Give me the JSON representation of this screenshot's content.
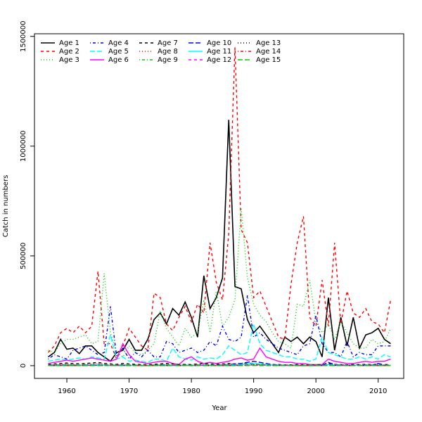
{
  "chart_data": {
    "type": "line",
    "xlabel": "Year",
    "ylabel": "Catch in numbers",
    "x": [
      1957,
      1958,
      1959,
      1960,
      1961,
      1962,
      1963,
      1964,
      1965,
      1966,
      1967,
      1968,
      1969,
      1970,
      1971,
      1972,
      1973,
      1974,
      1975,
      1976,
      1977,
      1978,
      1979,
      1980,
      1981,
      1982,
      1983,
      1984,
      1985,
      1986,
      1987,
      1988,
      1989,
      1990,
      1991,
      1992,
      1993,
      1994,
      1995,
      1996,
      1997,
      1998,
      1999,
      2000,
      2001,
      2002,
      2003,
      2004,
      2005,
      2006,
      2007,
      2008,
      2009,
      2010,
      2011,
      2012
    ],
    "xlim": [
      1954.8,
      2014.1
    ],
    "xticks": [
      1960,
      1970,
      1980,
      1990,
      2000,
      2010
    ],
    "ylim": [
      -58000,
      1512000
    ],
    "yticks": [
      0,
      500000,
      1000000,
      1500000
    ],
    "legend": "top-left",
    "series": [
      {
        "name": "Age 1",
        "color": "#000000",
        "linestyle": "solid",
        "values": [
          40000,
          60000,
          120000,
          75000,
          80000,
          55000,
          90000,
          90000,
          60000,
          40000,
          20000,
          60000,
          70000,
          120000,
          70000,
          70000,
          120000,
          210000,
          240000,
          190000,
          260000,
          230000,
          290000,
          220000,
          130000,
          410000,
          260000,
          310000,
          400000,
          1120000,
          360000,
          350000,
          210000,
          150000,
          180000,
          140000,
          100000,
          60000,
          130000,
          110000,
          130000,
          100000,
          130000,
          110000,
          40000,
          310000,
          70000,
          220000,
          90000,
          220000,
          80000,
          140000,
          150000,
          170000,
          120000,
          100000
        ]
      },
      {
        "name": "Age 2",
        "color": "#ff0000",
        "linestyle": "dashed",
        "values": [
          60000,
          90000,
          150000,
          170000,
          150000,
          180000,
          150000,
          180000,
          430000,
          100000,
          100000,
          30000,
          90000,
          170000,
          130000,
          90000,
          70000,
          330000,
          310000,
          190000,
          160000,
          220000,
          270000,
          200000,
          280000,
          240000,
          560000,
          380000,
          300000,
          600000,
          1450000,
          620000,
          560000,
          310000,
          340000,
          270000,
          200000,
          130000,
          120000,
          370000,
          560000,
          680000,
          220000,
          180000,
          390000,
          180000,
          560000,
          190000,
          340000,
          240000,
          220000,
          260000,
          200000,
          190000,
          150000,
          300000
        ]
      },
      {
        "name": "Age 3",
        "color": "#00cd00",
        "linestyle": "dotted",
        "values": [
          70000,
          60000,
          100000,
          120000,
          120000,
          130000,
          140000,
          100000,
          110000,
          420000,
          150000,
          60000,
          40000,
          90000,
          60000,
          50000,
          70000,
          100000,
          250000,
          170000,
          130000,
          90000,
          170000,
          130000,
          150000,
          300000,
          150000,
          340000,
          180000,
          220000,
          300000,
          720000,
          400000,
          280000,
          230000,
          200000,
          150000,
          110000,
          100000,
          80000,
          280000,
          270000,
          390000,
          200000,
          150000,
          190000,
          120000,
          200000,
          150000,
          100000,
          80000,
          80000,
          120000,
          100000,
          110000,
          170000
        ]
      },
      {
        "name": "Age 4",
        "color": "#0000ff",
        "linestyle": "dotdash",
        "values": [
          30000,
          50000,
          40000,
          30000,
          70000,
          80000,
          90000,
          70000,
          50000,
          60000,
          270000,
          40000,
          80000,
          30000,
          60000,
          40000,
          70000,
          40000,
          40000,
          110000,
          100000,
          60000,
          70000,
          80000,
          60000,
          70000,
          110000,
          90000,
          180000,
          120000,
          110000,
          130000,
          320000,
          130000,
          150000,
          120000,
          100000,
          80000,
          70000,
          60000,
          50000,
          90000,
          100000,
          230000,
          100000,
          60000,
          60000,
          40000,
          110000,
          40000,
          60000,
          50000,
          50000,
          90000,
          90000,
          90000
        ]
      },
      {
        "name": "Age 5",
        "color": "#00ffff",
        "linestyle": "longdash",
        "values": [
          20000,
          25000,
          30000,
          25000,
          30000,
          35000,
          30000,
          40000,
          35000,
          30000,
          140000,
          30000,
          40000,
          20000,
          25000,
          20000,
          15000,
          30000,
          30000,
          20000,
          80000,
          40000,
          30000,
          25000,
          40000,
          30000,
          35000,
          30000,
          50000,
          90000,
          70000,
          50000,
          60000,
          190000,
          100000,
          70000,
          60000,
          50000,
          40000,
          40000,
          30000,
          30000,
          20000,
          30000,
          130000,
          60000,
          50000,
          40000,
          30000,
          30000,
          40000,
          30000,
          40000,
          30000,
          50000,
          40000
        ]
      },
      {
        "name": "Age 6",
        "color": "#ff00ff",
        "linestyle": "solid",
        "values": [
          10000,
          15000,
          20000,
          25000,
          20000,
          25000,
          30000,
          35000,
          30000,
          25000,
          20000,
          30000,
          100000,
          50000,
          20000,
          15000,
          10000,
          15000,
          20000,
          20000,
          10000,
          5000,
          30000,
          40000,
          20000,
          10000,
          15000,
          10000,
          15000,
          20000,
          30000,
          35000,
          25000,
          30000,
          80000,
          40000,
          30000,
          20000,
          15000,
          15000,
          10000,
          10000,
          5000,
          5000,
          5000,
          30000,
          20000,
          15000,
          10000,
          10000,
          15000,
          20000,
          15000,
          20000,
          20000,
          30000
        ]
      },
      {
        "name": "Age 7",
        "color": "#000000",
        "linestyle": "dashed",
        "values": [
          5000,
          8000,
          10000,
          12000,
          10000,
          8000,
          10000,
          12000,
          15000,
          10000,
          8000,
          6000,
          10000,
          8000,
          6000,
          5000,
          5000,
          6000,
          8000,
          10000,
          8000,
          5000,
          6000,
          5000,
          8000,
          10000,
          8000,
          6000,
          8000,
          10000,
          8000,
          10000,
          12000,
          10000,
          8000,
          6000,
          5000,
          5000,
          4000,
          4000,
          5000,
          4000,
          3000,
          4000,
          5000,
          10000,
          6000,
          5000,
          4000,
          5000,
          5000,
          6000,
          5000,
          6000,
          5000,
          5000
        ]
      },
      {
        "name": "Age 8",
        "color": "#ff0000",
        "linestyle": "dotted",
        "values": [
          3000,
          4000,
          6000,
          8000,
          6000,
          5000,
          6000,
          8000,
          10000,
          8000,
          5000,
          4000,
          6000,
          5000,
          4000,
          3000,
          3000,
          4000,
          5000,
          6000,
          5000,
          3000,
          4000,
          3000,
          5000,
          6000,
          5000,
          4000,
          5000,
          6000,
          5000,
          6000,
          8000,
          6000,
          5000,
          4000,
          3000,
          3000,
          3000,
          3000,
          3000,
          3000,
          2000,
          3000,
          3000,
          6000,
          4000,
          3000,
          3000,
          3000,
          3000,
          4000,
          3000,
          4000,
          3000,
          3000
        ]
      },
      {
        "name": "Age 9",
        "color": "#00cd00",
        "linestyle": "dotdash",
        "values": [
          2000,
          3000,
          4000,
          5000,
          4000,
          3000,
          4000,
          5000,
          6000,
          5000,
          3000,
          2000,
          4000,
          3000,
          2000,
          2000,
          2000,
          3000,
          4000,
          4000,
          3000,
          2000,
          3000,
          2000,
          3000,
          4000,
          3000,
          2000,
          3000,
          4000,
          3000,
          4000,
          5000,
          4000,
          3000,
          2000,
          2000,
          2000,
          2000,
          2000,
          2000,
          2000,
          1000,
          2000,
          2000,
          4000,
          3000,
          2000,
          2000,
          2000,
          2000,
          3000,
          2000,
          3000,
          2000,
          2000
        ]
      },
      {
        "name": "Age 10",
        "color": "#0000ff",
        "linestyle": "longdash",
        "values": [
          1000,
          2000,
          3000,
          4000,
          3000,
          2000,
          3000,
          4000,
          5000,
          4000,
          2000,
          2000,
          3000,
          2000,
          2000,
          1000,
          1000,
          2000,
          3000,
          3000,
          2000,
          1000,
          2000,
          1000,
          2000,
          3000,
          2000,
          2000,
          3000,
          5000,
          8000,
          10000,
          15000,
          20000,
          15000,
          10000,
          5000,
          3000,
          2000,
          2000,
          2000,
          1000,
          1000,
          1000,
          2000,
          15000,
          5000,
          3000,
          2000,
          2000,
          2000,
          3000,
          2000,
          10000,
          3000,
          2000
        ]
      },
      {
        "name": "Age 11",
        "color": "#00ffff",
        "linestyle": "solid",
        "values": [
          1000,
          1000,
          2000,
          3000,
          2000,
          2000,
          2000,
          3000,
          4000,
          3000,
          2000,
          1000,
          2000,
          2000,
          1000,
          1000,
          1000,
          1000,
          2000,
          2000,
          2000,
          1000,
          1000,
          1000,
          1000,
          2000,
          2000,
          1000,
          2000,
          3000,
          4000,
          6000,
          8000,
          10000,
          8000,
          5000,
          3000,
          2000,
          2000,
          1000,
          1000,
          1000,
          1000,
          1000,
          1000,
          5000,
          3000,
          2000,
          1000,
          1000,
          1000,
          2000,
          1000,
          3000,
          2000,
          1000
        ]
      },
      {
        "name": "Age 12",
        "color": "#ff00ff",
        "linestyle": "dashed",
        "values": [
          1000,
          1000,
          1000,
          2000,
          1000,
          1000,
          1000,
          2000,
          2000,
          2000,
          1000,
          1000,
          1000,
          1000,
          1000,
          500,
          500,
          1000,
          1000,
          1000,
          1000,
          500,
          1000,
          500,
          1000,
          1000,
          1000,
          1000,
          1000,
          2000,
          2000,
          3000,
          4000,
          5000,
          4000,
          3000,
          2000,
          1000,
          1000,
          1000,
          500,
          500,
          500,
          500,
          1000,
          3000,
          2000,
          1000,
          1000,
          1000,
          1000,
          1000,
          1000,
          2000,
          1000,
          1000
        ]
      },
      {
        "name": "Age 13",
        "color": "#000000",
        "linestyle": "dotted",
        "values": [
          500,
          500,
          1000,
          1000,
          1000,
          500,
          500,
          1000,
          1000,
          1000,
          500,
          500,
          500,
          500,
          500,
          300,
          300,
          500,
          500,
          500,
          500,
          300,
          500,
          300,
          500,
          500,
          500,
          500,
          500,
          1000,
          1000,
          2000,
          2000,
          3000,
          2000,
          2000,
          1000,
          500,
          500,
          500,
          300,
          300,
          300,
          300,
          500,
          2000,
          1000,
          500,
          500,
          500,
          500,
          500,
          500,
          1000,
          500,
          500
        ]
      },
      {
        "name": "Age 14",
        "color": "#ff0000",
        "linestyle": "dotdash",
        "values": [
          300,
          300,
          500,
          500,
          500,
          300,
          300,
          500,
          500,
          500,
          300,
          300,
          300,
          300,
          300,
          200,
          200,
          300,
          300,
          300,
          300,
          200,
          300,
          200,
          300,
          300,
          300,
          300,
          300,
          500,
          500,
          1000,
          1000,
          2000,
          1000,
          1000,
          500,
          300,
          300,
          300,
          200,
          200,
          200,
          200,
          300,
          1000,
          500,
          300,
          300,
          300,
          300,
          300,
          300,
          500,
          300,
          300
        ]
      },
      {
        "name": "Age 15",
        "color": "#00cd00",
        "linestyle": "longdash",
        "values": [
          200,
          200,
          300,
          300,
          300,
          200,
          200,
          300,
          300,
          300,
          200,
          200,
          200,
          200,
          200,
          100,
          100,
          200,
          200,
          200,
          200,
          100,
          200,
          100,
          200,
          200,
          200,
          200,
          200,
          300,
          300,
          500,
          500,
          1000,
          500,
          500,
          300,
          200,
          200,
          200,
          100,
          100,
          100,
          100,
          200,
          500,
          300,
          200,
          200,
          200,
          200,
          200,
          200,
          300,
          200,
          200
        ]
      }
    ]
  }
}
